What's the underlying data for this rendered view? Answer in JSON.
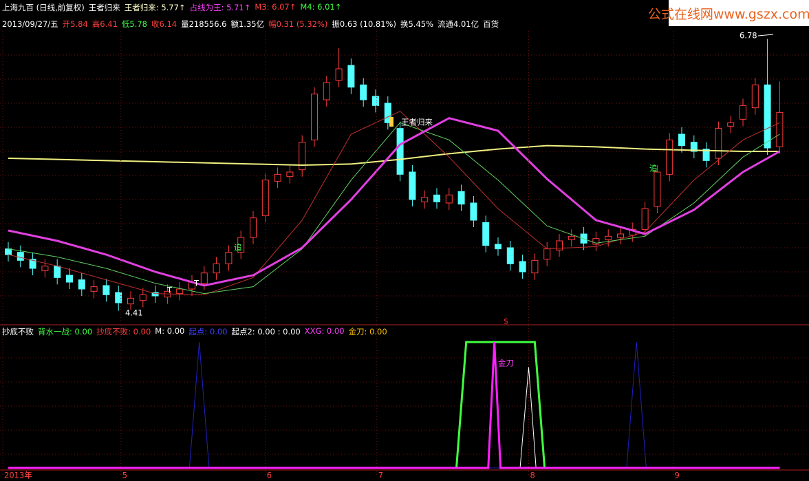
{
  "watermark": "公式在线网www.gszx.com.cn",
  "chart_data": [
    {
      "type": "candlestick",
      "header": [
        {
          "text": "上海九百 (日线,前复权)",
          "color": "#ffffff"
        },
        {
          "text": "王者归来",
          "color": "#ffffff"
        },
        {
          "text": "王者归来: 5.77↑",
          "color": "#ffffcc"
        },
        {
          "text": "占线为王: 5.71↑",
          "color": "#ff40ff"
        },
        {
          "text": "M3: 6.07↑",
          "color": "#ff4040"
        },
        {
          "text": "M4: 6.01↑",
          "color": "#40ff40"
        }
      ],
      "info": [
        {
          "text": "2013/09/27/五",
          "color": "#ffffff"
        },
        {
          "text": "开5.84",
          "color": "#ff4040"
        },
        {
          "text": "高6.41",
          "color": "#ff4040"
        },
        {
          "text": "低5.78",
          "color": "#40ff40"
        },
        {
          "text": "收6.14",
          "color": "#ff4040"
        },
        {
          "text": "量218556.6",
          "color": "#ffffff"
        },
        {
          "text": "额1.35亿",
          "color": "#ffffff"
        },
        {
          "text": "幅0.31 (5.32%)",
          "color": "#ff4040"
        },
        {
          "text": "振0.63 (10.81%)",
          "color": "#ffffff"
        },
        {
          "text": "换5.45%",
          "color": "#ffffff"
        },
        {
          "text": "流通4.01亿",
          "color": "#ffffff"
        },
        {
          "text": "百货",
          "color": "#ffffff"
        }
      ],
      "ylim": [
        4.3,
        6.85
      ],
      "up_color": "#ff3c3c",
      "down_color": "#54ffff",
      "open": [
        4.95,
        4.92,
        4.86,
        4.76,
        4.8,
        4.72,
        4.68,
        4.58,
        4.63,
        4.57,
        4.47,
        4.5,
        4.57,
        4.53,
        4.56,
        4.6,
        4.65,
        4.74,
        4.82,
        4.92,
        5.05,
        5.24,
        5.54,
        5.58,
        5.64,
        5.9,
        6.25,
        6.42,
        6.55,
        6.38,
        6.28,
        6.22,
        6.0,
        5.62,
        5.36,
        5.42,
        5.35,
        5.45,
        5.35,
        5.18,
        4.99,
        4.96,
        4.84,
        4.74,
        4.86,
        4.94,
        5.03,
        5.08,
        4.99,
        5.03,
        5.05,
        5.07,
        5.12,
        5.32,
        5.6,
        5.95,
        5.88,
        5.82,
        5.74,
        6.02,
        6.08,
        6.18,
        6.38,
        5.84
      ],
      "high": [
        5.01,
        4.98,
        4.92,
        4.86,
        4.86,
        4.78,
        4.74,
        4.68,
        4.69,
        4.63,
        4.58,
        4.61,
        4.63,
        4.64,
        4.66,
        4.72,
        4.8,
        4.88,
        4.98,
        5.11,
        5.28,
        5.61,
        5.66,
        5.68,
        5.94,
        6.36,
        6.46,
        6.7,
        6.61,
        6.44,
        6.34,
        6.28,
        6.06,
        5.68,
        5.46,
        5.48,
        5.48,
        5.51,
        5.41,
        5.24,
        5.05,
        5.02,
        4.9,
        4.91,
        5.01,
        5.08,
        5.12,
        5.14,
        5.1,
        5.12,
        5.14,
        5.18,
        5.36,
        5.68,
        5.96,
        6.01,
        5.94,
        5.88,
        6.06,
        6.11,
        6.26,
        6.44,
        6.78,
        6.41
      ],
      "low": [
        4.84,
        4.79,
        4.72,
        4.7,
        4.64,
        4.6,
        4.54,
        4.52,
        4.49,
        4.41,
        4.42,
        4.44,
        4.48,
        4.47,
        4.5,
        4.54,
        4.59,
        4.68,
        4.76,
        4.86,
        4.99,
        5.18,
        5.48,
        5.52,
        5.58,
        5.84,
        6.19,
        6.36,
        6.3,
        6.19,
        6.14,
        5.99,
        5.54,
        5.32,
        5.3,
        5.3,
        5.29,
        5.28,
        5.14,
        4.92,
        4.89,
        4.76,
        4.69,
        4.68,
        4.8,
        4.88,
        4.97,
        4.94,
        4.93,
        4.97,
        4.99,
        5.01,
        5.06,
        5.26,
        5.54,
        5.79,
        5.74,
        5.66,
        5.68,
        5.96,
        6.02,
        6.12,
        5.77,
        5.78
      ],
      "close": [
        4.9,
        4.85,
        4.78,
        4.8,
        4.7,
        4.66,
        4.6,
        4.62,
        4.55,
        4.48,
        4.52,
        4.55,
        4.54,
        4.58,
        4.6,
        4.66,
        4.74,
        4.82,
        4.92,
        5.05,
        5.22,
        5.55,
        5.6,
        5.62,
        5.88,
        6.3,
        6.4,
        6.52,
        6.36,
        6.25,
        6.2,
        6.05,
        5.6,
        5.38,
        5.4,
        5.36,
        5.42,
        5.34,
        5.2,
        4.98,
        4.95,
        4.82,
        4.75,
        4.85,
        4.95,
        5.02,
        5.06,
        5.0,
        5.04,
        5.06,
        5.08,
        5.12,
        5.3,
        5.62,
        5.9,
        5.85,
        5.8,
        5.72,
        6.0,
        6.05,
        6.2,
        6.38,
        5.83,
        6.14
      ],
      "overlays": [
        {
          "color": "#f0f080",
          "width": 2,
          "x": [
            0,
            4,
            8,
            12,
            16,
            20,
            24,
            28,
            32,
            36,
            40,
            44,
            48,
            52,
            56,
            60,
            63
          ],
          "values": [
            5.74,
            5.73,
            5.72,
            5.71,
            5.7,
            5.69,
            5.68,
            5.69,
            5.73,
            5.78,
            5.82,
            5.85,
            5.84,
            5.82,
            5.81,
            5.8,
            5.8
          ]
        },
        {
          "color": "#c03030",
          "width": 1,
          "x": [
            0,
            4,
            8,
            12,
            16,
            20,
            24,
            28,
            32,
            36,
            40,
            44,
            48,
            52,
            56,
            60,
            63
          ],
          "values": [
            4.9,
            4.8,
            4.68,
            4.56,
            4.55,
            4.7,
            5.2,
            5.95,
            6.15,
            5.75,
            5.3,
            4.95,
            4.97,
            5.1,
            5.55,
            5.9,
            6.05
          ]
        },
        {
          "color": "#60d060",
          "width": 1,
          "x": [
            0,
            4,
            8,
            12,
            16,
            20,
            24,
            28,
            32,
            36,
            40,
            44,
            48,
            52,
            56,
            60,
            63
          ],
          "values": [
            4.95,
            4.88,
            4.78,
            4.65,
            4.56,
            4.62,
            4.95,
            5.55,
            6.05,
            5.9,
            5.55,
            5.15,
            5.0,
            5.06,
            5.35,
            5.75,
            5.95
          ]
        },
        {
          "color": "#e040e0",
          "width": 3,
          "x": [
            0,
            4,
            8,
            12,
            16,
            20,
            24,
            28,
            32,
            36,
            40,
            44,
            48,
            52,
            56,
            60,
            63
          ],
          "values": [
            5.11,
            5.02,
            4.9,
            4.75,
            4.63,
            4.72,
            4.96,
            5.38,
            5.86,
            6.09,
            5.98,
            5.56,
            5.2,
            5.08,
            5.29,
            5.62,
            5.8
          ]
        }
      ],
      "annotations": [
        {
          "text": "6.78",
          "color": "#ffffff"
        },
        {
          "text": "4.41",
          "color": "#ffffff"
        },
        {
          "text": "王者归来",
          "color": "#ffffff"
        },
        {
          "text": "追",
          "color": "#40ff40"
        },
        {
          "text": "追",
          "color": "#40ff40"
        },
        {
          "text": "$",
          "color": "#ff3030"
        },
        {
          "text": "T",
          "color": "#ffffff"
        },
        {
          "text": "T",
          "color": "#ffffff"
        }
      ]
    },
    {
      "type": "line",
      "header": [
        {
          "text": "抄底不败",
          "color": "#ffffff"
        },
        {
          "text": "背水一战: 0.00",
          "color": "#40ff40"
        },
        {
          "text": "抄底不败: 0.00",
          "color": "#ff4040"
        },
        {
          "text": "M: 0.00",
          "color": "#ffffff"
        },
        {
          "text": "起点: 0.00",
          "color": "#4040ff"
        },
        {
          "text": "起点2: 0.00 : 0.00",
          "color": "#ffffff"
        },
        {
          "text": "XXG: 0.00",
          "color": "#ff40ff"
        },
        {
          "text": "金刀: 0.00",
          "color": "#ffc000"
        }
      ],
      "ylim": [
        0,
        1.05
      ],
      "xticks": [
        {
          "value": 0,
          "label": "2013年"
        },
        {
          "value": 9.2,
          "label": "5"
        },
        {
          "value": 21,
          "label": "6"
        },
        {
          "value": 30.1,
          "label": "7"
        },
        {
          "value": 42.5,
          "label": "8"
        },
        {
          "value": 54.3,
          "label": "9"
        }
      ],
      "series": [
        {
          "color": "#40ff40",
          "width": 3,
          "x": [
            0,
            36.6,
            37.4,
            43.0,
            43.8,
            63
          ],
          "values": [
            0,
            0,
            1,
            1,
            0,
            0
          ]
        },
        {
          "color": "#ffffff",
          "width": 1,
          "x": [
            41.8,
            42.5,
            43.1
          ],
          "values": [
            0,
            0.8,
            0
          ]
        },
        {
          "color": "#2020c0",
          "width": 1,
          "x": [
            0,
            14.8,
            15.6,
            16.4,
            50.5,
            51.3,
            52.1,
            63
          ],
          "values": [
            0,
            0,
            1,
            0,
            0,
            1,
            0,
            0
          ]
        },
        {
          "color": "#ff20ff",
          "width": 3,
          "x": [
            0,
            39.2,
            39.7,
            40.2,
            63
          ],
          "values": [
            0,
            0,
            1,
            0,
            0
          ]
        }
      ],
      "annotations": [
        {
          "text": "金刀",
          "color": "#ff40ff"
        }
      ]
    }
  ]
}
